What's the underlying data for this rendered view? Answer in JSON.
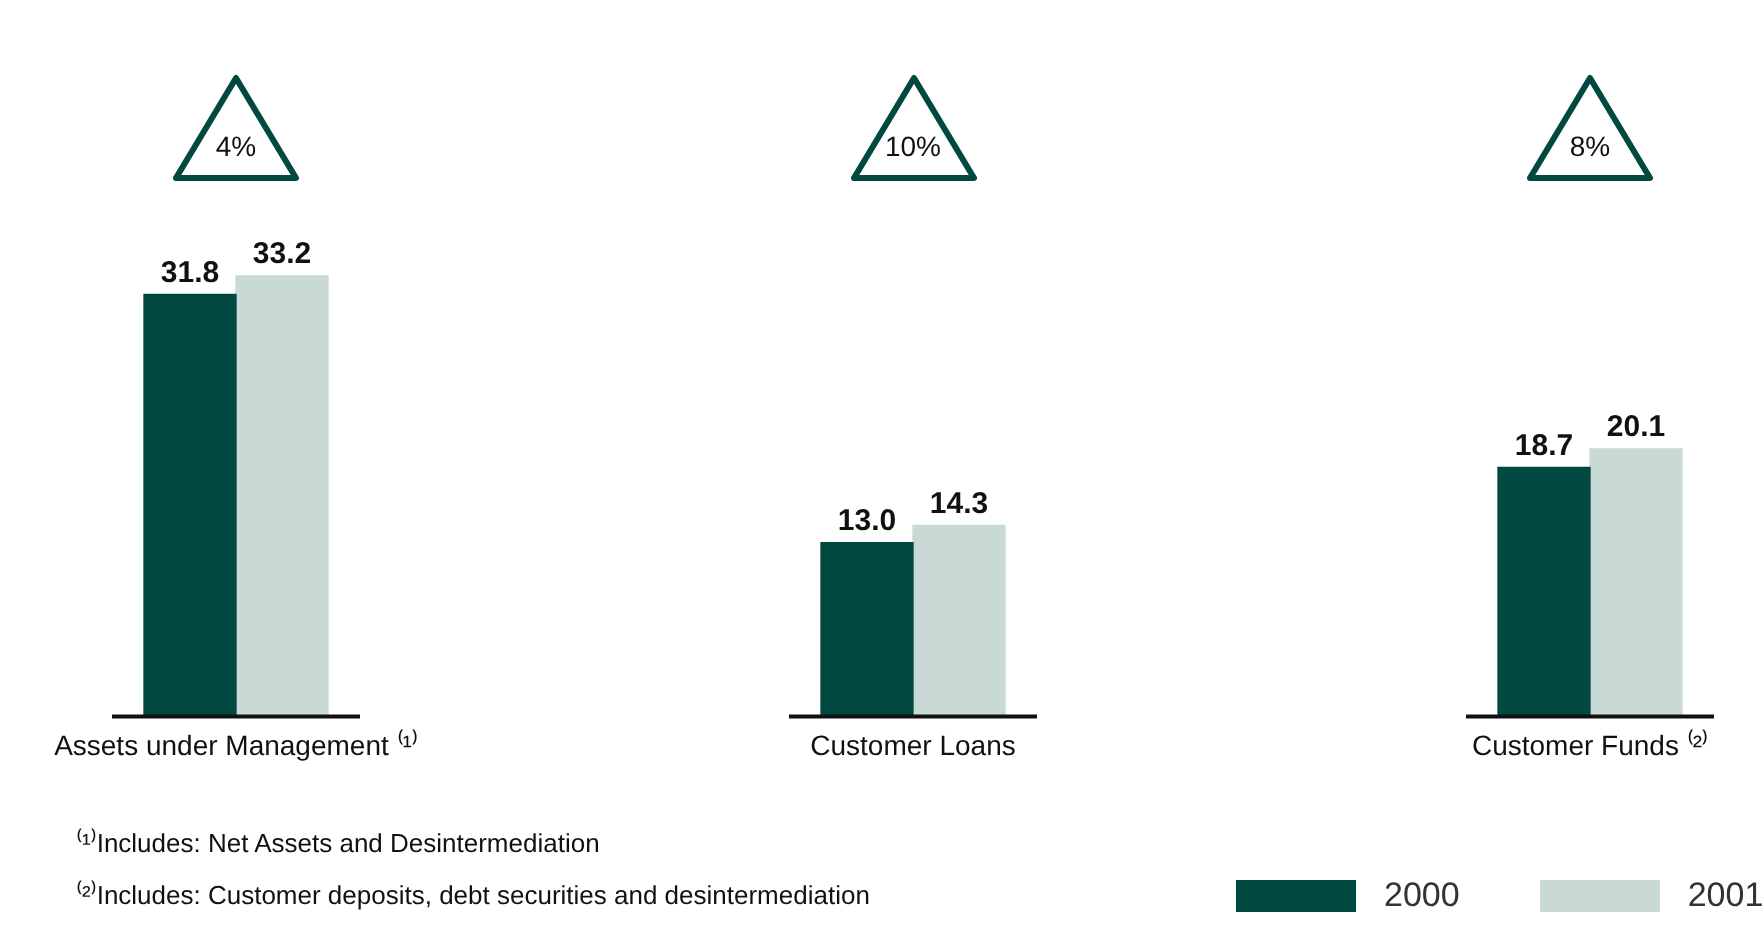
{
  "chart_data": {
    "type": "bar",
    "categories": [
      "Assets under Management ⁽¹⁾",
      "Customer Loans",
      "Customer Funds ⁽²⁾"
    ],
    "series": [
      {
        "name": "2000",
        "color": "#004840",
        "values": [
          31.8,
          13.0,
          18.7
        ],
        "value_labels": [
          "31.8",
          "13.0",
          "18.7"
        ]
      },
      {
        "name": "2001",
        "color": "#c9d9d5",
        "values": [
          33.2,
          14.3,
          20.1
        ],
        "value_labels": [
          "33.2",
          "14.3",
          "20.1"
        ]
      }
    ],
    "annotations": [
      "4%",
      "10%",
      "8%",
      "⁽¹⁾Includes: Net Assets and Desintermediation",
      "⁽²⁾Includes: Customer deposits, debt securities and desintermediation"
    ],
    "grid": false,
    "legend": "bottom right",
    "tick_labels": "x"
  }
}
